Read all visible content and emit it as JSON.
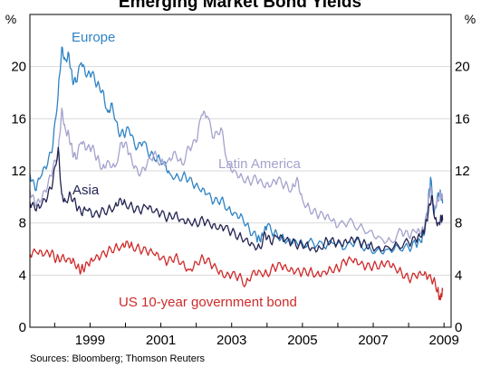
{
  "chart_data": {
    "type": "line",
    "title": "Emerging Market Bond Yields",
    "unit_left": "%",
    "unit_right": "%",
    "source": "Sources: Bloomberg; Thomson Reuters",
    "ylim": [
      0,
      24
    ],
    "xlim": [
      1997.3,
      2009.2
    ],
    "yticks": [
      0,
      4,
      8,
      12,
      16,
      20
    ],
    "ytick_labels": [
      "0",
      "4",
      "8",
      "12",
      "16",
      "20"
    ],
    "xticks": [
      1999,
      2001,
      2003,
      2005,
      2007,
      2009
    ],
    "xtick_labels": [
      "1999",
      "2001",
      "2003",
      "2005",
      "2007",
      "2009"
    ],
    "grid": true,
    "series": [
      {
        "name": "Europe",
        "color": "#2f83c4",
        "points": [
          [
            1997.3,
            11.8
          ],
          [
            1997.45,
            10.5
          ],
          [
            1997.6,
            11.5
          ],
          [
            1997.8,
            12.5
          ],
          [
            1997.95,
            14
          ],
          [
            1998.1,
            18
          ],
          [
            1998.2,
            21.5
          ],
          [
            1998.3,
            20.5
          ],
          [
            1998.4,
            21
          ],
          [
            1998.5,
            19
          ],
          [
            1998.6,
            18.8
          ],
          [
            1998.75,
            20.3
          ],
          [
            1998.9,
            19.2
          ],
          [
            1999.05,
            19.5
          ],
          [
            1999.2,
            18.6
          ],
          [
            1999.35,
            18.2
          ],
          [
            1999.5,
            16.5
          ],
          [
            1999.62,
            17.2
          ],
          [
            1999.8,
            15
          ],
          [
            1999.95,
            14.8
          ],
          [
            2000.1,
            15.2
          ],
          [
            2000.3,
            13.6
          ],
          [
            2000.5,
            14.2
          ],
          [
            2000.7,
            13.2
          ],
          [
            2000.9,
            13
          ],
          [
            2001.1,
            12.7
          ],
          [
            2001.25,
            11.8
          ],
          [
            2001.5,
            11.5
          ],
          [
            2001.7,
            11.6
          ],
          [
            2001.9,
            11
          ],
          [
            2002.1,
            10.5
          ],
          [
            2002.3,
            10.2
          ],
          [
            2002.5,
            9.6
          ],
          [
            2002.7,
            9.8
          ],
          [
            2002.9,
            9.1
          ],
          [
            2003.1,
            8.8
          ],
          [
            2003.3,
            8.5
          ],
          [
            2003.5,
            7.5
          ],
          [
            2003.7,
            6.9
          ],
          [
            2003.8,
            6.6
          ],
          [
            2003.9,
            7.1
          ],
          [
            2004.0,
            7.8
          ],
          [
            2004.2,
            7.2
          ],
          [
            2004.4,
            6.9
          ],
          [
            2004.6,
            6.7
          ],
          [
            2004.8,
            6.7
          ],
          [
            2005.0,
            6.4
          ],
          [
            2005.3,
            6.5
          ],
          [
            2005.6,
            6.2
          ],
          [
            2005.9,
            6.4
          ],
          [
            2006.2,
            6.0
          ],
          [
            2006.5,
            6.6
          ],
          [
            2006.8,
            6.1
          ],
          [
            2007.1,
            5.9
          ],
          [
            2007.4,
            6.0
          ],
          [
            2007.7,
            6.2
          ],
          [
            2008.0,
            6.1
          ],
          [
            2008.2,
            6.4
          ],
          [
            2008.35,
            6.5
          ],
          [
            2008.45,
            7.2
          ],
          [
            2008.55,
            9.5
          ],
          [
            2008.62,
            11.5
          ],
          [
            2008.72,
            8.6
          ],
          [
            2008.82,
            10.2
          ],
          [
            2008.9,
            10.5
          ],
          [
            2008.96,
            9.5
          ]
        ]
      },
      {
        "name": "Latin America",
        "color": "#a4a2cd",
        "points": [
          [
            1997.3,
            10.5
          ],
          [
            1997.45,
            9.4
          ],
          [
            1997.6,
            9.6
          ],
          [
            1997.8,
            10.8
          ],
          [
            1997.95,
            12.2
          ],
          [
            1998.1,
            13.4
          ],
          [
            1998.2,
            16.8
          ],
          [
            1998.3,
            15.2
          ],
          [
            1998.4,
            14.8
          ],
          [
            1998.5,
            13.5
          ],
          [
            1998.6,
            12.9
          ],
          [
            1998.75,
            14.2
          ],
          [
            1998.9,
            13.6
          ],
          [
            1999.05,
            13.8
          ],
          [
            1999.2,
            13
          ],
          [
            1999.35,
            12.2
          ],
          [
            1999.5,
            12.8
          ],
          [
            1999.7,
            12.3
          ],
          [
            1999.9,
            14.2
          ],
          [
            2000.05,
            13.8
          ],
          [
            2000.2,
            12.5
          ],
          [
            2000.4,
            11.6
          ],
          [
            2000.6,
            12.4
          ],
          [
            2000.8,
            13.3
          ],
          [
            2001.0,
            12.6
          ],
          [
            2001.2,
            12.8
          ],
          [
            2001.4,
            13.5
          ],
          [
            2001.6,
            12.5
          ],
          [
            2001.8,
            13.8
          ],
          [
            2002.0,
            14.2
          ],
          [
            2002.15,
            16.3
          ],
          [
            2002.3,
            16.2
          ],
          [
            2002.5,
            14.5
          ],
          [
            2002.7,
            15.3
          ],
          [
            2002.9,
            12.5
          ],
          [
            2003.1,
            12
          ],
          [
            2003.3,
            11.5
          ],
          [
            2003.5,
            11.2
          ],
          [
            2003.7,
            11.4
          ],
          [
            2003.9,
            10.8
          ],
          [
            2004.1,
            10.8
          ],
          [
            2004.3,
            11.3
          ],
          [
            2004.5,
            10.9
          ],
          [
            2004.7,
            10.6
          ],
          [
            2004.85,
            11.5
          ],
          [
            2005.0,
            9.8
          ],
          [
            2005.2,
            9.1
          ],
          [
            2005.4,
            8.7
          ],
          [
            2005.6,
            8.5
          ],
          [
            2005.8,
            8.2
          ],
          [
            2006.0,
            7.7
          ],
          [
            2006.3,
            8.1
          ],
          [
            2006.6,
            7.7
          ],
          [
            2006.9,
            7.4
          ],
          [
            2007.2,
            6.9
          ],
          [
            2007.5,
            6.6
          ],
          [
            2007.8,
            7.4
          ],
          [
            2008.0,
            7.0
          ],
          [
            2008.2,
            7.3
          ],
          [
            2008.35,
            7.2
          ],
          [
            2008.45,
            7.6
          ],
          [
            2008.55,
            9.4
          ],
          [
            2008.62,
            10.8
          ],
          [
            2008.72,
            9.2
          ],
          [
            2008.82,
            9.8
          ],
          [
            2008.9,
            10.3
          ],
          [
            2008.96,
            9.8
          ]
        ]
      },
      {
        "name": "Asia",
        "color": "#232452",
        "points": [
          [
            1997.3,
            9.6
          ],
          [
            1997.45,
            9
          ],
          [
            1997.6,
            9.2
          ],
          [
            1997.8,
            10
          ],
          [
            1997.95,
            11.2
          ],
          [
            1998.1,
            13.8
          ],
          [
            1998.2,
            10.2
          ],
          [
            1998.3,
            9.7
          ],
          [
            1998.45,
            10.2
          ],
          [
            1998.6,
            9.4
          ],
          [
            1998.75,
            8.7
          ],
          [
            1998.9,
            9
          ],
          [
            1999.1,
            8.5
          ],
          [
            1999.3,
            8.8
          ],
          [
            1999.5,
            9
          ],
          [
            1999.7,
            9.3
          ],
          [
            1999.85,
            9.9
          ],
          [
            2000.0,
            9.5
          ],
          [
            2000.2,
            9.2
          ],
          [
            2000.4,
            8.9
          ],
          [
            2000.6,
            9.2
          ],
          [
            2000.8,
            8.8
          ],
          [
            2001.0,
            8.7
          ],
          [
            2001.2,
            8.4
          ],
          [
            2001.4,
            8.7
          ],
          [
            2001.6,
            8.3
          ],
          [
            2001.8,
            8.2
          ],
          [
            2002.0,
            8.0
          ],
          [
            2002.2,
            8.2
          ],
          [
            2002.4,
            7.8
          ],
          [
            2002.6,
            7.5
          ],
          [
            2002.8,
            7.6
          ],
          [
            2003.0,
            7.3
          ],
          [
            2003.2,
            7.0
          ],
          [
            2003.4,
            6.8
          ],
          [
            2003.6,
            6.4
          ],
          [
            2003.8,
            6.1
          ],
          [
            2003.95,
            7.2
          ],
          [
            2004.1,
            6.5
          ],
          [
            2004.3,
            6.9
          ],
          [
            2004.5,
            6.6
          ],
          [
            2004.7,
            6.5
          ],
          [
            2004.9,
            6.3
          ],
          [
            2005.1,
            6.4
          ],
          [
            2005.3,
            6.1
          ],
          [
            2005.5,
            6.1
          ],
          [
            2005.7,
            6.7
          ],
          [
            2005.9,
            6.5
          ],
          [
            2006.1,
            6.3
          ],
          [
            2006.3,
            6.5
          ],
          [
            2006.5,
            6.7
          ],
          [
            2006.7,
            6.4
          ],
          [
            2006.9,
            6.3
          ],
          [
            2007.1,
            6.1
          ],
          [
            2007.4,
            6.2
          ],
          [
            2007.7,
            6.3
          ],
          [
            2008.0,
            6.5
          ],
          [
            2008.2,
            6.7
          ],
          [
            2008.35,
            6.9
          ],
          [
            2008.45,
            7.4
          ],
          [
            2008.55,
            8.7
          ],
          [
            2008.65,
            10.1
          ],
          [
            2008.75,
            8.3
          ],
          [
            2008.85,
            8.0
          ],
          [
            2008.92,
            8.5
          ],
          [
            2008.96,
            8.2
          ]
        ]
      },
      {
        "name": "US 10-year government bond",
        "color": "#cf2a2a",
        "points": [
          [
            1997.3,
            5.6
          ],
          [
            1997.5,
            5.7
          ],
          [
            1997.7,
            5.5
          ],
          [
            1997.9,
            5.7
          ],
          [
            1998.05,
            5.2
          ],
          [
            1998.2,
            5.4
          ],
          [
            1998.4,
            5.3
          ],
          [
            1998.55,
            5.1
          ],
          [
            1998.7,
            4.4
          ],
          [
            1998.8,
            4.5
          ],
          [
            1998.95,
            4.8
          ],
          [
            1999.1,
            5.1
          ],
          [
            1999.3,
            5.4
          ],
          [
            1999.5,
            5.8
          ],
          [
            1999.7,
            6.1
          ],
          [
            1999.9,
            6.3
          ],
          [
            2000.05,
            6.6
          ],
          [
            2000.2,
            6.2
          ],
          [
            2000.4,
            6.0
          ],
          [
            2000.6,
            5.8
          ],
          [
            2000.8,
            5.6
          ],
          [
            2001.0,
            5.2
          ],
          [
            2001.2,
            5.0
          ],
          [
            2001.4,
            5.4
          ],
          [
            2001.6,
            5.0
          ],
          [
            2001.8,
            4.4
          ],
          [
            2002.0,
            5.0
          ],
          [
            2002.2,
            5.3
          ],
          [
            2002.4,
            4.9
          ],
          [
            2002.6,
            4.3
          ],
          [
            2002.8,
            3.8
          ],
          [
            2003.0,
            4.0
          ],
          [
            2003.2,
            3.9
          ],
          [
            2003.4,
            3.3
          ],
          [
            2003.6,
            4.3
          ],
          [
            2003.8,
            4.3
          ],
          [
            2004.0,
            4.1
          ],
          [
            2004.2,
            4.6
          ],
          [
            2004.4,
            4.7
          ],
          [
            2004.6,
            4.3
          ],
          [
            2004.8,
            4.2
          ],
          [
            2005.0,
            4.2
          ],
          [
            2005.2,
            4.3
          ],
          [
            2005.4,
            4.1
          ],
          [
            2005.6,
            4.3
          ],
          [
            2005.8,
            4.5
          ],
          [
            2006.0,
            4.5
          ],
          [
            2006.2,
            5.0
          ],
          [
            2006.4,
            5.1
          ],
          [
            2006.6,
            4.8
          ],
          [
            2006.8,
            4.6
          ],
          [
            2007.0,
            4.7
          ],
          [
            2007.2,
            4.8
          ],
          [
            2007.4,
            5.1
          ],
          [
            2007.6,
            4.7
          ],
          [
            2007.8,
            4.2
          ],
          [
            2008.0,
            3.7
          ],
          [
            2008.2,
            3.9
          ],
          [
            2008.4,
            4.0
          ],
          [
            2008.55,
            3.8
          ],
          [
            2008.7,
            3.6
          ],
          [
            2008.82,
            2.9
          ],
          [
            2008.88,
            2.2
          ],
          [
            2008.92,
            2.6
          ],
          [
            2008.96,
            2.8
          ]
        ]
      }
    ],
    "annotations": [
      {
        "text": "Europe",
        "series": "Europe"
      },
      {
        "text": "Latin America",
        "series": "Latin America"
      },
      {
        "text": "Asia",
        "series": "Asia"
      },
      {
        "text": "US 10-year government bond",
        "series": "US 10-year government bond"
      }
    ]
  }
}
